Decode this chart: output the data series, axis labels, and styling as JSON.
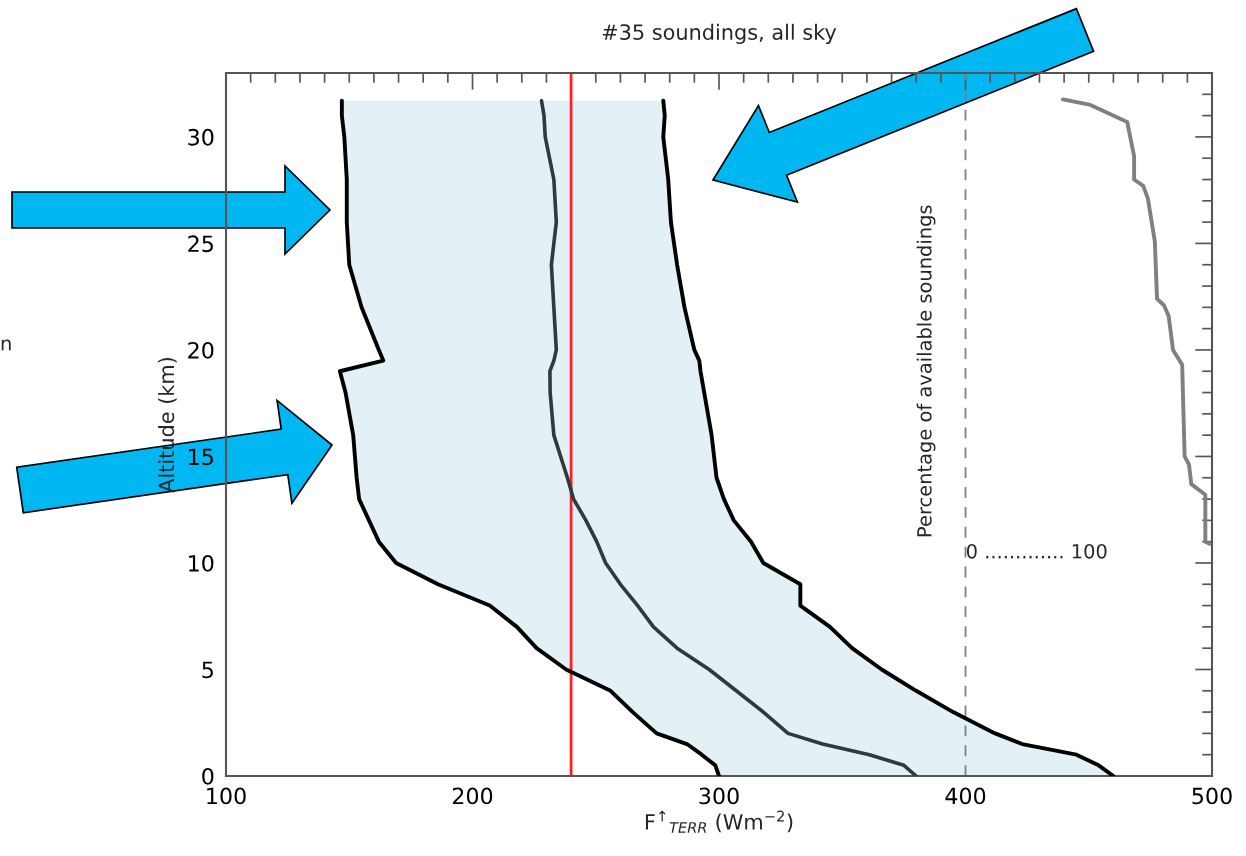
{
  "chart_data": {
    "type": "line",
    "orientation": "horizontal",
    "title": "#35 soundings, all sky",
    "xlabel": "F$^{↑}$$_{TERR}$ (Wm$^{−2}$)",
    "ylabel": "Altitude (km)",
    "xlim": [
      100,
      500
    ],
    "xticks": [
      100,
      200,
      300,
      400,
      500
    ],
    "ylim": [
      0,
      33
    ],
    "yticks": [
      0,
      5,
      10,
      15,
      20,
      25,
      30
    ],
    "grid": false,
    "series": [
      {
        "color": "#000000",
        "x": [
          0,
          0.5,
          1,
          1.5,
          2,
          3,
          4,
          5,
          6,
          7,
          8,
          9,
          10,
          11,
          12,
          13,
          14,
          16,
          18,
          19,
          19.5,
          20,
          22,
          24,
          26,
          28,
          30,
          31,
          31.7
        ],
        "values": [
          300,
          298.5,
          293,
          287,
          274.7,
          265,
          256,
          238,
          226,
          218,
          207,
          186,
          169,
          162,
          158,
          154,
          153,
          151.6,
          148.5,
          146.2,
          163.8,
          162,
          155,
          150,
          149,
          149,
          148,
          147,
          147
        ]
      },
      {
        "color": "#000000",
        "x": [
          0,
          0.5,
          1,
          1.5,
          2,
          3,
          4,
          5,
          6,
          7,
          8,
          9,
          10,
          11,
          12,
          13,
          14,
          16,
          18,
          19,
          19.5,
          20,
          22,
          24,
          26,
          28,
          30,
          31,
          31.7
        ],
        "values": [
          460,
          454,
          445,
          423,
          412,
          395,
          380,
          366,
          354,
          345,
          333,
          333,
          318,
          313,
          306,
          302,
          299,
          297,
          294,
          292.5,
          292,
          290,
          286,
          283,
          280.5,
          279.4,
          277.4,
          278,
          277.4
        ]
      },
      {
        "color": "#2f3a3f",
        "x": [
          0,
          0.5,
          1,
          1.5,
          2,
          3,
          4,
          5,
          6,
          7,
          8,
          9,
          10,
          11,
          12,
          13,
          14,
          16,
          18,
          19,
          19.5,
          20,
          22,
          24,
          26,
          28,
          30,
          31,
          31.7
        ],
        "values": [
          380,
          375,
          361,
          342,
          328,
          318,
          307,
          296,
          283,
          273.4,
          267,
          260,
          254,
          250.4,
          246,
          241,
          238.5,
          233,
          231.5,
          231.4,
          233,
          234,
          233,
          232,
          234,
          233,
          229.5,
          229,
          228
        ],
        "lower": [
          300,
          298.5,
          293,
          287,
          274.7,
          265,
          256,
          238,
          226,
          218,
          207,
          186,
          169,
          162,
          158,
          154,
          153,
          151.6,
          148.5,
          146.2,
          163.8,
          162,
          155,
          150,
          149,
          149,
          148,
          147,
          147
        ],
        "upper": [
          460,
          454,
          445,
          423,
          412,
          395,
          380,
          366,
          354,
          345,
          333,
          333,
          318,
          313,
          306,
          302,
          299,
          297,
          294,
          292.5,
          292,
          290,
          286,
          283,
          280.5,
          279.4,
          277.4,
          278,
          277.4
        ]
      },
      {
        "color": "#808080",
        "x": [
          10.9,
          11,
          13.2,
          13.7,
          14.6,
          15,
          19.3,
          20,
          21.6,
          22.1,
          22.4,
          25.1,
          27.1,
          27.7,
          28,
          29.1,
          30.7,
          31.5,
          31.76
        ],
        "values": [
          499.1,
          497.3,
          497.3,
          491.6,
          490.7,
          488.9,
          487.9,
          484.2,
          482.4,
          480.5,
          477.7,
          476.8,
          474,
          472.1,
          468.4,
          468.4,
          465.6,
          450.7,
          439.5
        ]
      }
    ],
    "ref_lines": [
      {
        "axis": "x",
        "value": 240,
        "color": "#ff2020",
        "line_style": "solid"
      },
      {
        "axis": "x",
        "value": 400,
        "color": "#808080",
        "line_style": "dashed"
      }
    ],
    "annotations": [
      "Percentage of available soundings",
      "0 ............. 100",
      "n"
    ]
  }
}
